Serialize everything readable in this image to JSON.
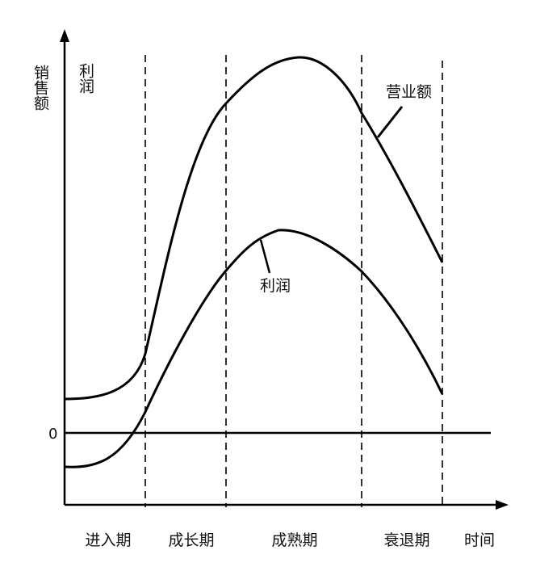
{
  "chart_data": {
    "type": "line",
    "ylabel": "销售额",
    "ylabel_secondary": "利润",
    "xlabel": "时间",
    "zero_label": "0",
    "stages": [
      "进入期",
      "成长期",
      "成熟期",
      "衰退期"
    ],
    "series": [
      {
        "name": "营业额"
      },
      {
        "name": "利润"
      }
    ],
    "line_color": "#000000"
  }
}
